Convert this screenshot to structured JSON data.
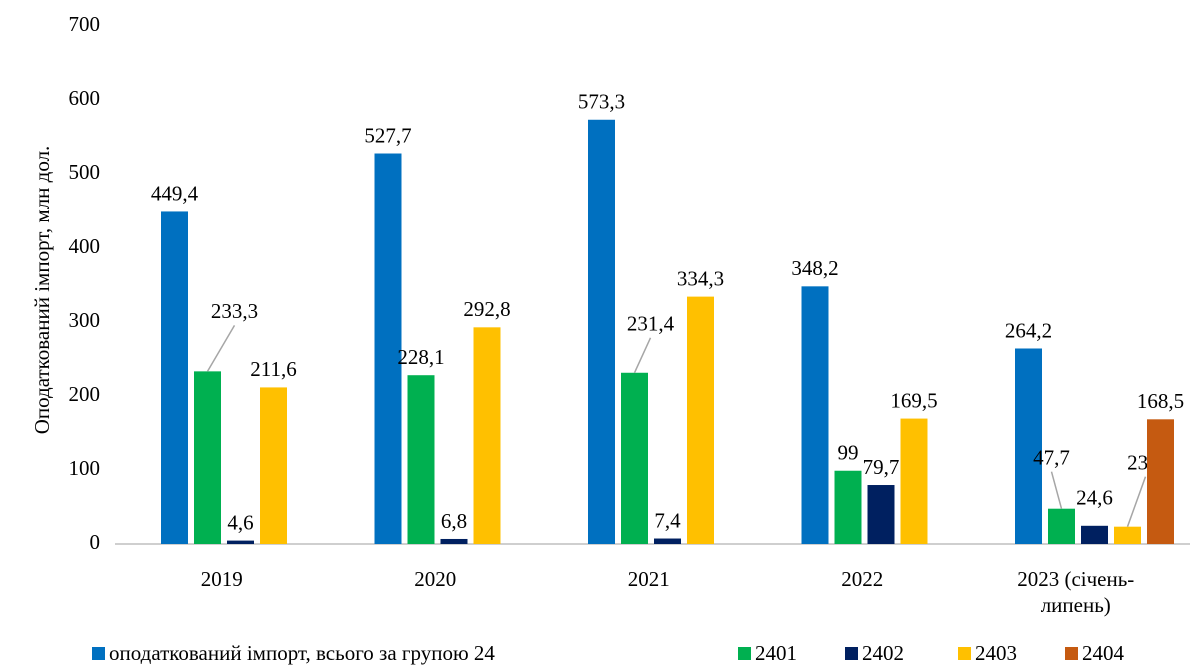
{
  "chart_data": {
    "type": "bar",
    "y_label": "Оподаткований імпорт, млн дол.",
    "categories": [
      "2019",
      "2020",
      "2021",
      "2022",
      "2023 (січень-липень)"
    ],
    "series": [
      {
        "name": "оподаткований імпорт, всього за групою 24",
        "color": "#0070c0",
        "values": [
          449.4,
          527.7,
          573.3,
          348.2,
          264.2
        ],
        "value_labels": [
          "449,4",
          "527,7",
          "573,3",
          "348,2",
          "264,2"
        ]
      },
      {
        "name": "2401",
        "color": "#00b050",
        "values": [
          233.3,
          228.1,
          231.4,
          99,
          47.7
        ],
        "value_labels": [
          "233,3",
          "228,1",
          "231,4",
          "99",
          "47,7"
        ]
      },
      {
        "name": "2402",
        "color": "#002060",
        "values": [
          4.6,
          6.8,
          7.4,
          79.7,
          24.6
        ],
        "value_labels": [
          "4,6",
          "6,8",
          "7,4",
          "79,7",
          "24,6"
        ]
      },
      {
        "name": "2403",
        "color": "#ffc000",
        "values": [
          211.6,
          292.8,
          334.3,
          169.5,
          23.4
        ],
        "value_labels": [
          "211,6",
          "292,8",
          "334,3",
          "169,5",
          "23,4"
        ]
      },
      {
        "name": "2404",
        "color": "#c55a11",
        "values": [
          null,
          null,
          null,
          null,
          168.5
        ],
        "value_labels": [
          null,
          null,
          null,
          null,
          "168,5"
        ]
      }
    ],
    "ylim": [
      0,
      700
    ],
    "yticks": [
      0,
      100,
      200,
      300,
      400,
      500,
      600,
      700
    ],
    "grid": false,
    "legend": "bottom"
  }
}
